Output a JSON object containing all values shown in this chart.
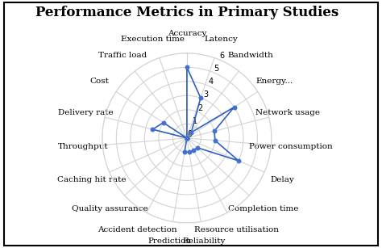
{
  "title": "Performance Metrics in Primary Studies",
  "categories": [
    "Accuracy",
    "Latency",
    "Bandwidth",
    "Energy...",
    "Network usage",
    "Power consumption",
    "Delay",
    "Completion time",
    "Resource utilisation",
    "Reliability",
    "Prediction",
    "Accident detection",
    "Quality assurance",
    "Caching hit rate",
    "Throughput",
    "Delivery rate",
    "Cost",
    "Traffic load",
    "Execution time"
  ],
  "values": [
    5,
    3,
    0.5,
    4,
    2,
    2,
    4,
    1,
    1,
    1,
    1,
    0,
    0,
    0,
    0,
    2.5,
    2,
    0,
    0
  ],
  "line_color": "#3060c0",
  "marker_color": "#4070d0",
  "rmax": 6,
  "rticks": [
    0,
    1,
    2,
    3,
    4,
    5,
    6
  ],
  "background_color": "#ffffff",
  "label_fontsize": 7.5,
  "title_fontsize": 12
}
